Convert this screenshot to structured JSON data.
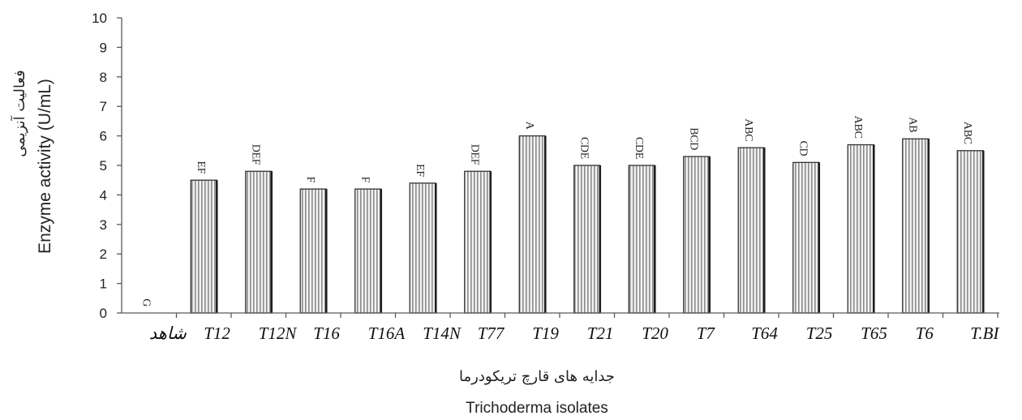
{
  "chart_data": {
    "type": "bar",
    "categories": [
      "شاهد",
      "T12",
      "T12N",
      "T16",
      "T16A",
      "T14N",
      "T77",
      "T19",
      "T21",
      "T20",
      "T7",
      "T64",
      "T25",
      "T65",
      "T6",
      "T.BI"
    ],
    "values": [
      0,
      4.5,
      4.8,
      4.2,
      4.2,
      4.4,
      4.8,
      6.0,
      5.0,
      5.0,
      5.3,
      5.6,
      5.1,
      5.7,
      5.9,
      5.5
    ],
    "significance_letters": [
      "G",
      "EF",
      "DEF",
      "F",
      "F",
      "EF",
      "DEF",
      "A",
      "CDE",
      "CDE",
      "BCD",
      "ABC",
      "CD",
      "ABC",
      "AB",
      "ABC"
    ],
    "ylim": [
      0,
      10
    ],
    "yticks": [
      0,
      1,
      2,
      3,
      4,
      5,
      6,
      7,
      8,
      9,
      10
    ],
    "ylabel": [
      "فعالیت آنزیمی",
      "Enzyme activity (U/mL)"
    ],
    "xlabel": [
      "جدایه های قارچ تریکودرما",
      "Trichoderma isolates"
    ],
    "grid": false,
    "legend": "none"
  },
  "colors": {
    "bar_fill": "#f2f2f2",
    "bar_stripe": "#8c8c8c",
    "bar_outline": "#333333",
    "axis": "#5a5a5a",
    "text": "#222222"
  }
}
